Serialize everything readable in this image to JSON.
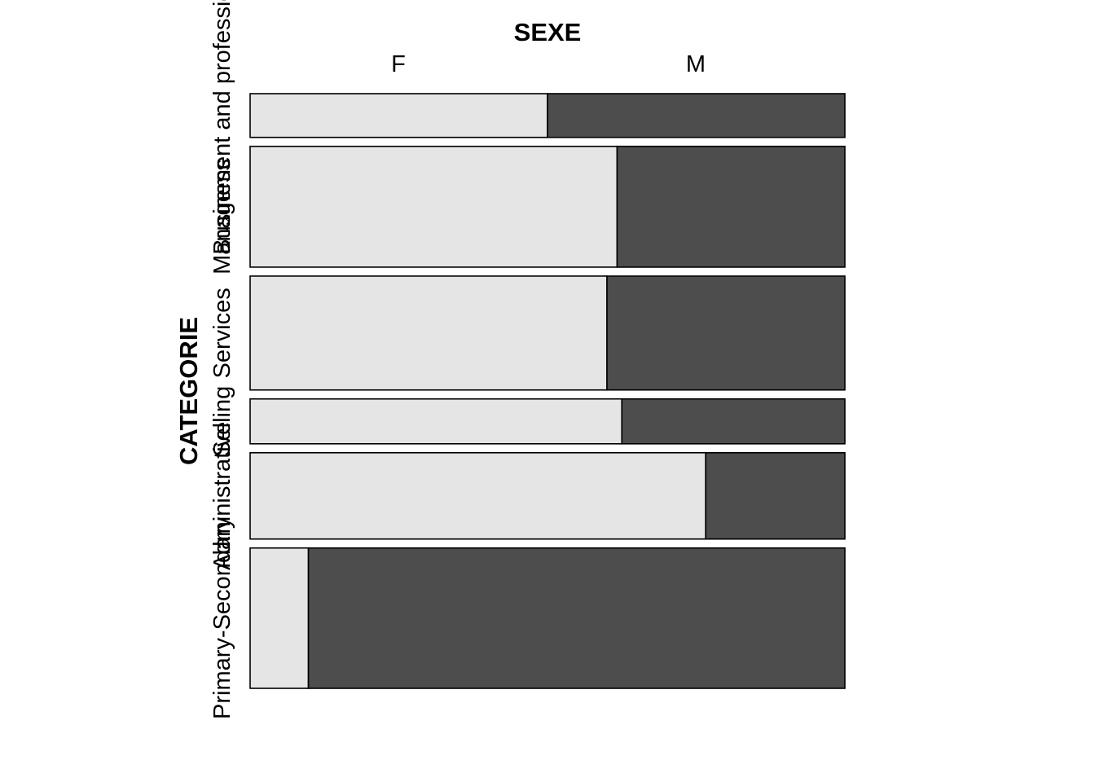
{
  "chart_data": {
    "type": "mosaic",
    "title": "",
    "x_variable": "SEXE",
    "y_variable": "CATEGORIE",
    "x_levels": [
      "F",
      "M"
    ],
    "y_levels": [
      "Management and professional",
      "Business",
      "Services",
      "Selling",
      "Administrative",
      "Primary-Secondary"
    ],
    "row_share": [
      0.076,
      0.21,
      0.198,
      0.078,
      0.15,
      0.244
    ],
    "female_fraction": [
      0.5,
      0.617,
      0.6,
      0.625,
      0.766,
      0.098
    ],
    "colors": {
      "F": "#e5e5e5",
      "M": "#4d4d4d",
      "border": "#000000"
    },
    "grid": false,
    "legend": "none"
  }
}
